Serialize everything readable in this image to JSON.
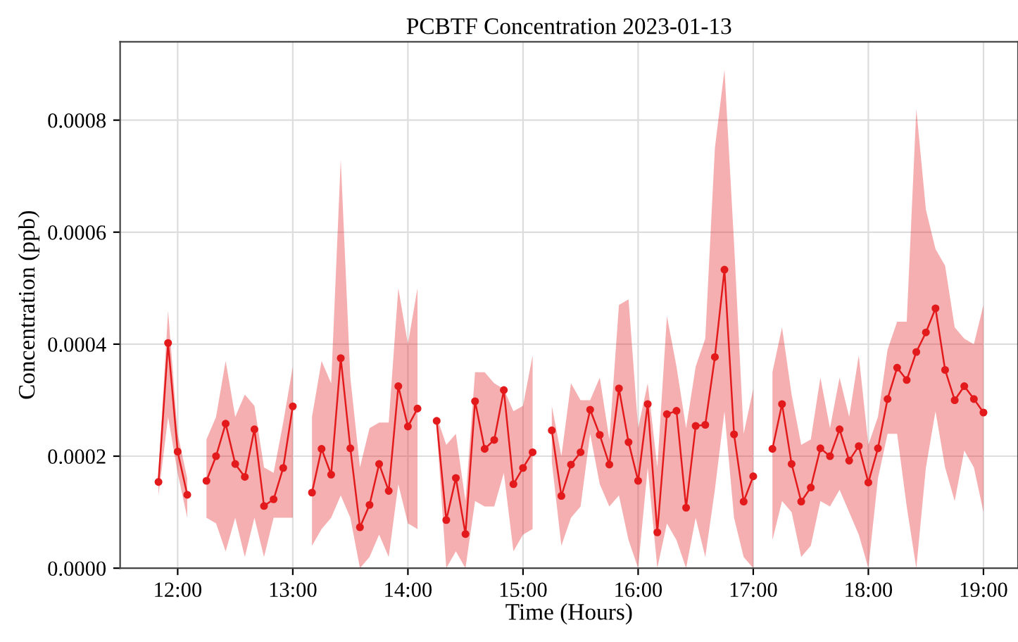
{
  "chart_data": {
    "type": "line",
    "title": "PCBTF Concentration 2023-01-13",
    "xlabel": "Time (Hours)",
    "ylabel": "Concentration (ppb)",
    "xlim": [
      11.5,
      19.3
    ],
    "ylim": [
      0,
      0.00094
    ],
    "xticks": [
      {
        "value": 12,
        "label": "12:00"
      },
      {
        "value": 13,
        "label": "13:00"
      },
      {
        "value": 14,
        "label": "14:00"
      },
      {
        "value": 15,
        "label": "15:00"
      },
      {
        "value": 16,
        "label": "16:00"
      },
      {
        "value": 17,
        "label": "17:00"
      },
      {
        "value": 18,
        "label": "18:00"
      },
      {
        "value": 19,
        "label": "19:00"
      }
    ],
    "yticks": [
      {
        "value": 0,
        "label": "0.0000"
      },
      {
        "value": 0.0002,
        "label": "0.0002"
      },
      {
        "value": 0.0004,
        "label": "0.0004"
      },
      {
        "value": 0.0006,
        "label": "0.0006"
      },
      {
        "value": 0.0008,
        "label": "0.0008"
      }
    ],
    "grid": true,
    "marker": "circle",
    "line_style": "solid",
    "x": [
      11.8333,
      11.9167,
      12,
      12.0833,
      12.1667,
      12.25,
      12.3333,
      12.4167,
      12.5,
      12.5833,
      12.6667,
      12.75,
      12.8333,
      12.9167,
      13,
      13.0833,
      13.1667,
      13.25,
      13.3333,
      13.4167,
      13.5,
      13.5833,
      13.6667,
      13.75,
      13.8333,
      13.9167,
      14,
      14.0833,
      14.1667,
      14.25,
      14.3333,
      14.4167,
      14.5,
      14.5833,
      14.6667,
      14.75,
      14.8333,
      14.9167,
      15,
      15.0833,
      15.1667,
      15.25,
      15.3333,
      15.4167,
      15.5,
      15.5833,
      15.6667,
      15.75,
      15.8333,
      15.9167,
      16,
      16.0833,
      16.1667,
      16.25,
      16.3333,
      16.4167,
      16.5,
      16.5833,
      16.6667,
      16.75,
      16.8333,
      16.9167,
      17,
      17.0833,
      17.1667,
      17.25,
      17.3333,
      17.4167,
      17.5,
      17.5833,
      17.6667,
      17.75,
      17.8333,
      17.9167,
      18,
      18.0833,
      18.1667,
      18.25,
      18.3333,
      18.4167,
      18.5,
      18.5833,
      18.6667,
      18.75,
      18.8333,
      18.9167,
      19
    ],
    "series": [
      {
        "color": "#e31a1c",
        "values": [
          0.000154,
          0.000402,
          0.000208,
          0.000131,
          null,
          0.000156,
          0.0002,
          0.000258,
          0.000186,
          0.000163,
          0.000248,
          0.000111,
          0.000123,
          0.000179,
          0.000289,
          null,
          0.000135,
          0.000213,
          0.000167,
          0.000375,
          0.000214,
          7.3e-05,
          0.000113,
          0.000186,
          0.000138,
          0.000325,
          0.000253,
          0.000285,
          null,
          0.000263,
          8.6e-05,
          0.000161,
          6.1e-05,
          0.000298,
          0.000213,
          0.000229,
          0.000318,
          0.00015,
          0.000179,
          0.000207,
          null,
          0.000246,
          0.000129,
          0.000185,
          0.000207,
          0.000283,
          0.000238,
          0.000185,
          0.000321,
          0.000225,
          0.000156,
          0.000293,
          6.4e-05,
          0.000275,
          0.000281,
          0.000108,
          0.000254,
          0.000256,
          0.000377,
          0.000533,
          0.000239,
          0.000119,
          0.000164,
          null,
          0.000213,
          0.000293,
          0.000186,
          0.000119,
          0.000144,
          0.000214,
          0.0002,
          0.000248,
          0.000192,
          0.000218,
          0.000153,
          0.000214,
          0.000302,
          0.000358,
          0.000336,
          0.000386,
          0.000421,
          0.000464,
          0.000354,
          0.0003,
          0.000325,
          0.000302,
          0.000278
        ],
        "upper": [
          0.00017,
          0.00046,
          0.00024,
          0.00016,
          null,
          0.00023,
          0.00027,
          0.00037,
          0.00027,
          0.00031,
          0.00029,
          0.00018,
          0.00017,
          0.00026,
          0.00036,
          null,
          0.00027,
          0.00037,
          0.00033,
          0.00073,
          0.00034,
          0.00018,
          0.00025,
          0.00026,
          0.00026,
          0.0005,
          0.0004,
          0.0005,
          null,
          0.00027,
          0.00022,
          0.00024,
          0.00012,
          0.00035,
          0.00035,
          0.00033,
          0.00032,
          0.00028,
          0.00029,
          0.00038,
          null,
          0.00029,
          0.0002,
          0.00033,
          0.0003,
          0.0003,
          0.00034,
          0.00023,
          0.00047,
          0.00048,
          0.00025,
          0.00033,
          0.00018,
          0.00045,
          0.00036,
          0.00025,
          0.00036,
          0.00041,
          0.00075,
          0.00089,
          0.00058,
          0.00024,
          0.00032,
          null,
          0.00035,
          0.00043,
          0.00031,
          0.00022,
          0.00023,
          0.00034,
          0.00025,
          0.00034,
          0.00027,
          0.00038,
          0.00022,
          0.00027,
          0.00039,
          0.00044,
          0.00044,
          0.00082,
          0.00064,
          0.00057,
          0.00054,
          0.00043,
          0.00041,
          0.0004,
          0.00047
        ],
        "lower": [
          0.00013,
          0.00027,
          0.00017,
          9e-05,
          null,
          9e-05,
          8e-05,
          3e-05,
          9e-05,
          2e-05,
          9e-05,
          2e-05,
          9e-05,
          9e-05,
          9e-05,
          null,
          4e-05,
          7e-05,
          9e-05,
          0.00013,
          9e-05,
          0,
          2e-05,
          6e-05,
          2e-05,
          0.00015,
          8e-05,
          7e-05,
          null,
          0.00025,
          0,
          3e-05,
          0,
          0.00012,
          0.00011,
          0.00011,
          0.00017,
          3e-05,
          6e-05,
          7e-05,
          null,
          0.00019,
          4e-05,
          9e-05,
          0.00011,
          0.00024,
          0.00015,
          0.00011,
          0.00013,
          5e-05,
          0,
          0.00018,
          0,
          8e-05,
          5e-05,
          0,
          9e-05,
          2e-05,
          0.00014,
          0.00028,
          9e-05,
          2e-05,
          0,
          null,
          5e-05,
          0.00012,
          0.0001,
          2e-05,
          4e-05,
          0.00012,
          0.00011,
          0.00014,
          0.0001,
          6e-05,
          0,
          0.00016,
          0.00024,
          0.00024,
          0.00011,
          0,
          0.00018,
          0.00028,
          0.00018,
          0.00012,
          0.00021,
          0.00018,
          0.0001
        ]
      }
    ]
  }
}
